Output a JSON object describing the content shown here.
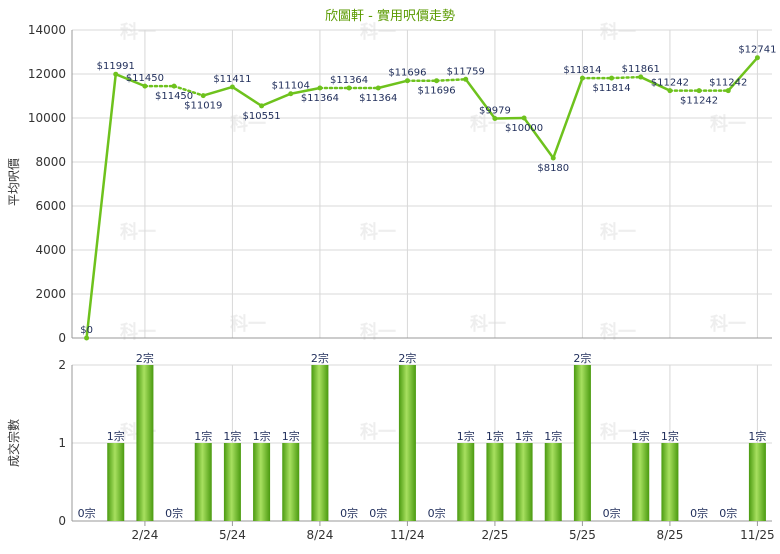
{
  "colors": {
    "title": "#5a9a00",
    "line": "#6ec21d",
    "bar_dark": "#4a9a10",
    "bar_light": "#a8e060",
    "grid": "#d8d8d8",
    "axis": "#999999"
  },
  "chart_data": [
    {
      "type": "line",
      "title": "欣圖軒 - 實用呎價走勢",
      "ylabel": "平均呎價",
      "ylim": [
        0,
        14000
      ],
      "yticks": [
        "0",
        "2000",
        "4000",
        "6000",
        "8000",
        "10000",
        "12000",
        "14000"
      ],
      "series": [
        {
          "values": [
            0,
            11991,
            11450,
            11450,
            11019,
            11411,
            10551,
            11104,
            11364,
            11364,
            11364,
            11696,
            11696,
            11759,
            9979,
            10000,
            8180,
            11814,
            11814,
            11861,
            11242,
            11242,
            11242,
            12741
          ],
          "labels": [
            "$0",
            "$11991",
            "$11450",
            "$11450",
            "$11019",
            "$11411",
            "$10551",
            "$11104",
            "$11364",
            "$11364",
            "$11364",
            "$11696",
            "$11696",
            "$11759",
            "$9979",
            "$10000",
            "$8180",
            "$11814",
            "$11814",
            "$11861",
            "$11242",
            "$11242",
            "$11242",
            "$12741"
          ],
          "label_pos": [
            "above",
            "above",
            "above",
            "below",
            "below",
            "above",
            "below",
            "above",
            "below",
            "above",
            "below",
            "above",
            "below",
            "above",
            "above",
            "below",
            "below",
            "above",
            "below",
            "above",
            "above",
            "below",
            "above",
            "above"
          ],
          "interpolated": [
            false,
            false,
            false,
            true,
            false,
            false,
            false,
            false,
            false,
            true,
            false,
            false,
            true,
            false,
            false,
            false,
            false,
            false,
            true,
            false,
            false,
            true,
            false,
            false
          ]
        }
      ]
    },
    {
      "type": "bar",
      "ylabel": "成交宗數",
      "ylim": [
        0,
        2
      ],
      "yticks": [
        "0",
        "1",
        "2"
      ],
      "x_tick_labels": [
        "2/24",
        "5/24",
        "8/24",
        "11/24",
        "2/25",
        "5/25",
        "8/25",
        "11/25"
      ],
      "x_tick_index": [
        2,
        5,
        8,
        11,
        14,
        17,
        20,
        23
      ],
      "series": [
        {
          "values": [
            0,
            1,
            2,
            0,
            1,
            1,
            1,
            1,
            2,
            0,
            0,
            2,
            0,
            1,
            1,
            1,
            1,
            2,
            0,
            1,
            1,
            0,
            0,
            1
          ],
          "labels": [
            "0宗",
            "1宗",
            "2宗",
            "0宗",
            "1宗",
            "1宗",
            "1宗",
            "1宗",
            "2宗",
            "0宗",
            "0宗",
            "2宗",
            "0宗",
            "1宗",
            "1宗",
            "1宗",
            "1宗",
            "2宗",
            "0宗",
            "1宗",
            "1宗",
            "0宗",
            "0宗",
            "1宗"
          ]
        }
      ]
    }
  ],
  "watermark": "科一"
}
